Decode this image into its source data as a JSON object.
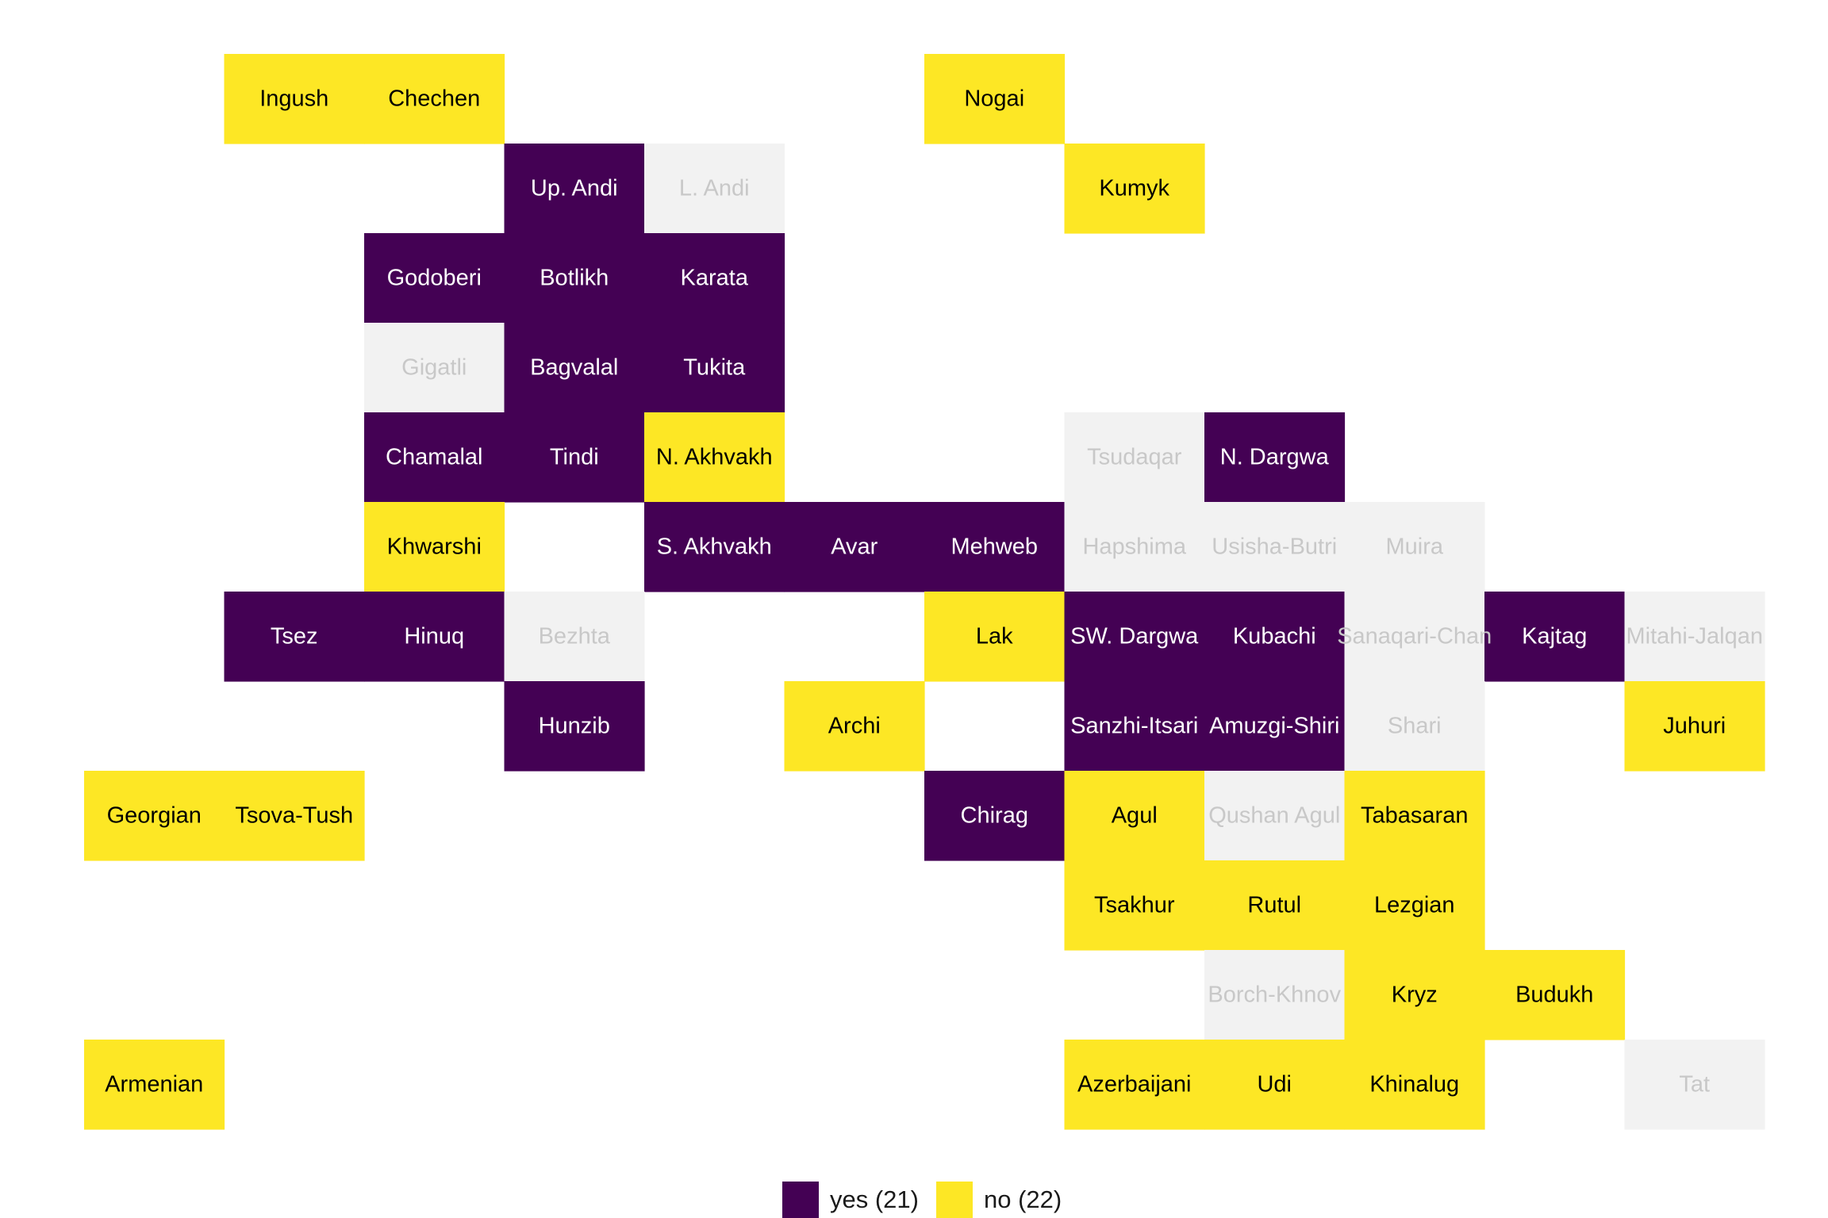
{
  "chart_data": {
    "type": "heatmap",
    "title": "",
    "xlabel": "",
    "ylabel": "",
    "legend": {
      "position": "bottom",
      "entries": [
        {
          "key": "yes",
          "label": "yes (21)",
          "color": "#440154"
        },
        {
          "key": "no",
          "label": "no (22)",
          "color": "#FDE725"
        }
      ]
    },
    "colors": {
      "yes": "#440154",
      "no": "#FDE725",
      "na": "#F2F2F2",
      "text_dark": "#000000",
      "text_light": "#FFFFFF",
      "text_na": "#C8C8C8"
    },
    "cells": [
      {
        "col": 2,
        "row": 1,
        "label": "Ingush",
        "value": "no"
      },
      {
        "col": 3,
        "row": 1,
        "label": "Chechen",
        "value": "no"
      },
      {
        "col": 7,
        "row": 1,
        "label": "Nogai",
        "value": "no"
      },
      {
        "col": 4,
        "row": 2,
        "label": "Up. Andi",
        "value": "yes"
      },
      {
        "col": 5,
        "row": 2,
        "label": "L. Andi",
        "value": "na"
      },
      {
        "col": 8,
        "row": 2,
        "label": "Kumyk",
        "value": "no"
      },
      {
        "col": 3,
        "row": 3,
        "label": "Godoberi",
        "value": "yes"
      },
      {
        "col": 4,
        "row": 3,
        "label": "Botlikh",
        "value": "yes"
      },
      {
        "col": 5,
        "row": 3,
        "label": "Karata",
        "value": "yes"
      },
      {
        "col": 3,
        "row": 4,
        "label": "Gigatli",
        "value": "na"
      },
      {
        "col": 4,
        "row": 4,
        "label": "Bagvalal",
        "value": "yes"
      },
      {
        "col": 5,
        "row": 4,
        "label": "Tukita",
        "value": "yes"
      },
      {
        "col": 3,
        "row": 5,
        "label": "Chamalal",
        "value": "yes"
      },
      {
        "col": 4,
        "row": 5,
        "label": "Tindi",
        "value": "yes"
      },
      {
        "col": 5,
        "row": 5,
        "label": "N. Akhvakh",
        "value": "no"
      },
      {
        "col": 8,
        "row": 5,
        "label": "Tsudaqar",
        "value": "na"
      },
      {
        "col": 9,
        "row": 5,
        "label": "N. Dargwa",
        "value": "yes"
      },
      {
        "col": 3,
        "row": 6,
        "label": "Khwarshi",
        "value": "no"
      },
      {
        "col": 5,
        "row": 6,
        "label": "S. Akhvakh",
        "value": "yes"
      },
      {
        "col": 6,
        "row": 6,
        "label": "Avar",
        "value": "yes"
      },
      {
        "col": 7,
        "row": 6,
        "label": "Mehweb",
        "value": "yes"
      },
      {
        "col": 8,
        "row": 6,
        "label": "Hapshima",
        "value": "na"
      },
      {
        "col": 9,
        "row": 6,
        "label": "Usisha-Butri",
        "value": "na"
      },
      {
        "col": 10,
        "row": 6,
        "label": "Muira",
        "value": "na"
      },
      {
        "col": 2,
        "row": 7,
        "label": "Tsez",
        "value": "yes"
      },
      {
        "col": 3,
        "row": 7,
        "label": "Hinuq",
        "value": "yes"
      },
      {
        "col": 4,
        "row": 7,
        "label": "Bezhta",
        "value": "na"
      },
      {
        "col": 7,
        "row": 7,
        "label": "Lak",
        "value": "no"
      },
      {
        "col": 8,
        "row": 7,
        "label": "SW. Dargwa",
        "value": "yes"
      },
      {
        "col": 9,
        "row": 7,
        "label": "Kubachi",
        "value": "yes"
      },
      {
        "col": 10,
        "row": 7,
        "label": "Sanaqari-Chan",
        "value": "na"
      },
      {
        "col": 11,
        "row": 7,
        "label": "Kajtag",
        "value": "yes"
      },
      {
        "col": 12,
        "row": 7,
        "label": "Mitahi-Jalqan",
        "value": "na"
      },
      {
        "col": 4,
        "row": 8,
        "label": "Hunzib",
        "value": "yes"
      },
      {
        "col": 6,
        "row": 8,
        "label": "Archi",
        "value": "no"
      },
      {
        "col": 8,
        "row": 8,
        "label": "Sanzhi-Itsari",
        "value": "yes"
      },
      {
        "col": 9,
        "row": 8,
        "label": "Amuzgi-Shiri",
        "value": "yes"
      },
      {
        "col": 10,
        "row": 8,
        "label": "Shari",
        "value": "na"
      },
      {
        "col": 12,
        "row": 8,
        "label": "Juhuri",
        "value": "no"
      },
      {
        "col": 1,
        "row": 9,
        "label": "Georgian",
        "value": "no"
      },
      {
        "col": 2,
        "row": 9,
        "label": "Tsova-Tush",
        "value": "no"
      },
      {
        "col": 7,
        "row": 9,
        "label": "Chirag",
        "value": "yes"
      },
      {
        "col": 8,
        "row": 9,
        "label": "Agul",
        "value": "no"
      },
      {
        "col": 9,
        "row": 9,
        "label": "Qushan Agul",
        "value": "na"
      },
      {
        "col": 10,
        "row": 9,
        "label": "Tabasaran",
        "value": "no"
      },
      {
        "col": 8,
        "row": 10,
        "label": "Tsakhur",
        "value": "no"
      },
      {
        "col": 9,
        "row": 10,
        "label": "Rutul",
        "value": "no"
      },
      {
        "col": 10,
        "row": 10,
        "label": "Lezgian",
        "value": "no"
      },
      {
        "col": 9,
        "row": 11,
        "label": "Borch-Khnov",
        "value": "na"
      },
      {
        "col": 10,
        "row": 11,
        "label": "Kryz",
        "value": "no"
      },
      {
        "col": 11,
        "row": 11,
        "label": "Budukh",
        "value": "no"
      },
      {
        "col": 1,
        "row": 12,
        "label": "Armenian",
        "value": "no"
      },
      {
        "col": 8,
        "row": 12,
        "label": "Azerbaijani",
        "value": "no"
      },
      {
        "col": 9,
        "row": 12,
        "label": "Udi",
        "value": "no"
      },
      {
        "col": 10,
        "row": 12,
        "label": "Khinalug",
        "value": "no"
      },
      {
        "col": 12,
        "row": 12,
        "label": "Tat",
        "value": "na"
      }
    ]
  }
}
